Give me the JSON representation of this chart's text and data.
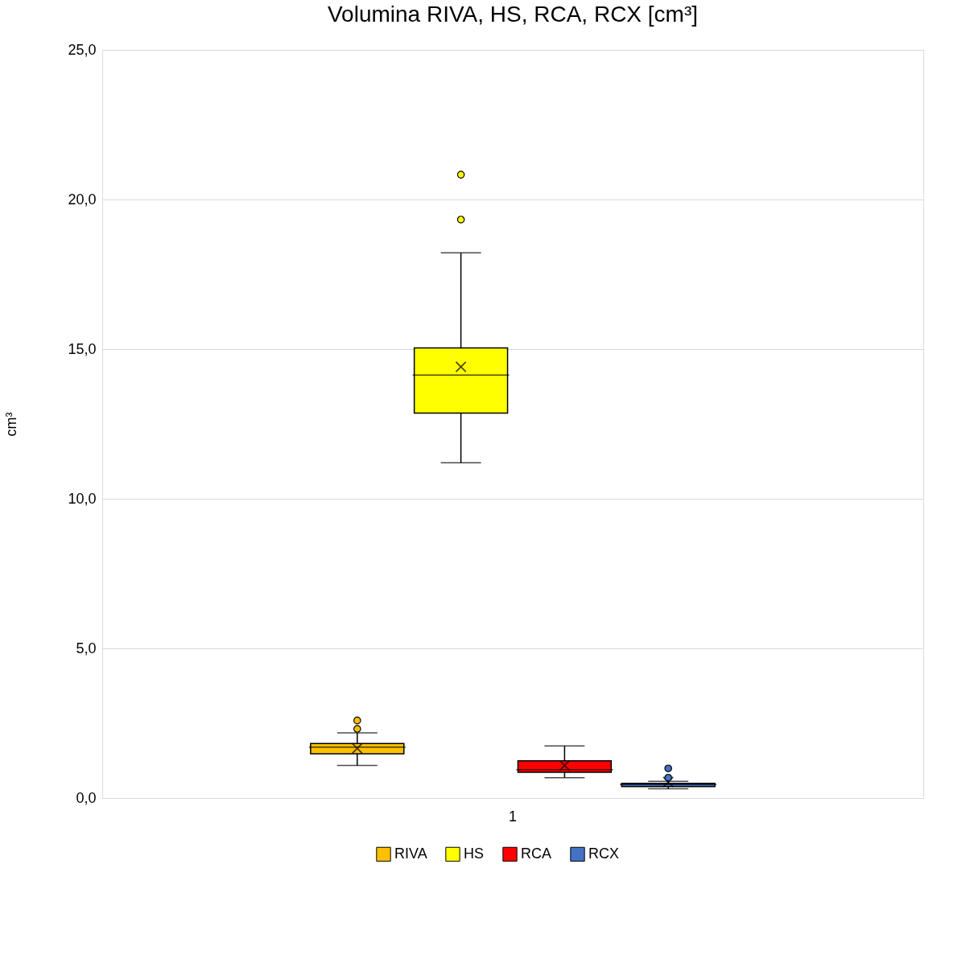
{
  "chart_data": {
    "type": "box",
    "title": "Volumina RIVA, HS, RCA, RCX [cm³]",
    "ylabel": "cm³",
    "categories": [
      "1"
    ],
    "series": [
      {
        "name": "RIVA",
        "color": "#ffc000",
        "boxes": [
          {
            "low": 1.09,
            "q1": 1.48,
            "median": 1.7,
            "q3": 1.82,
            "high": 2.18,
            "mean": 1.66,
            "outliers": [
              2.31,
              2.59
            ]
          }
        ]
      },
      {
        "name": "HS",
        "color": "#ffff00",
        "boxes": [
          {
            "low": 11.2,
            "q1": 12.86,
            "median": 14.13,
            "q3": 15.04,
            "high": 18.22,
            "mean": 14.41,
            "outliers": [
              19.33,
              20.83
            ]
          }
        ]
      },
      {
        "name": "RCA",
        "color": "#ff0000",
        "boxes": [
          {
            "low": 0.68,
            "q1": 0.86,
            "median": 0.95,
            "q3": 1.24,
            "high": 1.74,
            "mean": 1.09
          }
        ]
      },
      {
        "name": "RCX",
        "color": "#4472c4",
        "boxes": [
          {
            "low": 0.31,
            "q1": 0.38,
            "median": 0.45,
            "q3": 0.49,
            "high": 0.56,
            "mean": 0.54,
            "outliers": [
              0.68,
              0.99
            ]
          }
        ]
      }
    ],
    "ylim": [
      0,
      25
    ],
    "yticks": [
      {
        "value": 0,
        "label": "0,0"
      },
      {
        "value": 5,
        "label": "5,0"
      },
      {
        "value": 10,
        "label": "10,0"
      },
      {
        "value": 15,
        "label": "15,0"
      },
      {
        "value": 20,
        "label": "20,0"
      },
      {
        "value": 25,
        "label": "25,0"
      }
    ],
    "grid": "y",
    "legend": "bottom",
    "marker": "cross"
  }
}
